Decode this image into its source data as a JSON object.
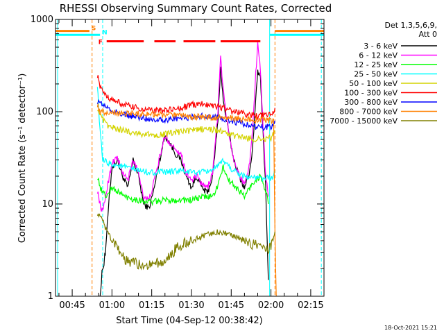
{
  "chart_data": {
    "type": "line",
    "title": "RHESSI Observing Summary Count Rates, Corrected",
    "xlabel": "Start Time (04-Sep-12 00:38:42)",
    "ylabel": "Corrected Count Rate (s⁻¹ detector⁻¹)",
    "yscale": "log",
    "xlim_minutes": [
      38.7,
      140
    ],
    "ylim": [
      1,
      1000
    ],
    "x_ticks": [
      {
        "label": "00:45",
        "minutes": 45
      },
      {
        "label": "01:00",
        "minutes": 60
      },
      {
        "label": "01:15",
        "minutes": 75
      },
      {
        "label": "01:30",
        "minutes": 90
      },
      {
        "label": "01:45",
        "minutes": 105
      },
      {
        "label": "02:00",
        "minutes": 120
      },
      {
        "label": "02:15",
        "minutes": 135
      }
    ],
    "y_ticks": [
      {
        "label": "1",
        "value": 1
      },
      {
        "label": "10",
        "value": 10
      },
      {
        "label": "100",
        "value": 100
      },
      {
        "label": "1000",
        "value": 1000
      }
    ],
    "legend_header": [
      "Det 1,3,5,6,9,",
      "Att 0"
    ],
    "legend_position": "right",
    "grid": false,
    "flag_bars": [
      {
        "label": "S",
        "color": "#ff8000",
        "level": 750,
        "segments": [
          [
            38.7,
            51.5
          ],
          [
            121.5,
            140
          ]
        ]
      },
      {
        "label": "N",
        "color": "#00ffff",
        "level": 680,
        "segments": [
          [
            38.7,
            55.5
          ],
          [
            119.5,
            140
          ]
        ]
      },
      {
        "label": "F",
        "color": "#ff0000",
        "level": 580,
        "segments": [
          [
            58,
            72
          ],
          [
            76,
            84
          ],
          [
            87,
            99
          ],
          [
            101,
            116
          ]
        ]
      }
    ],
    "vertical_markers": [
      {
        "minutes": 39.5,
        "color": "#00ffff",
        "style": "solid"
      },
      {
        "minutes": 52.5,
        "color": "#ff8000",
        "style": "dashed"
      },
      {
        "minutes": 56.5,
        "color": "#00ffff",
        "style": "dashed"
      },
      {
        "minutes": 119.5,
        "color": "#00ffff",
        "style": "solid"
      },
      {
        "minutes": 121.5,
        "color": "#ff8000",
        "style": "dashed"
      },
      {
        "minutes": 139,
        "color": "#00ffff",
        "style": "dashed"
      }
    ],
    "series": [
      {
        "name": "3 - 6 keV",
        "color": "#000000",
        "x": [
          55.5,
          56.5,
          57.5,
          59,
          60,
          62,
          64,
          66,
          68,
          70,
          72,
          74,
          76,
          78,
          80,
          82,
          84,
          86,
          88,
          90,
          92,
          94,
          96,
          98,
          100,
          101,
          102,
          104,
          106,
          108,
          110,
          112,
          113,
          114,
          115,
          116,
          117,
          118,
          119
        ],
        "y": [
          1,
          2,
          3,
          12,
          25,
          30,
          20,
          15,
          30,
          20,
          10,
          9,
          15,
          30,
          55,
          45,
          35,
          30,
          20,
          15,
          20,
          15,
          13,
          20,
          80,
          320,
          130,
          60,
          30,
          20,
          15,
          22,
          40,
          100,
          280,
          230,
          60,
          15,
          1.5
        ]
      },
      {
        "name": "6 - 12 keV",
        "color": "#ff00ff",
        "x": [
          54.5,
          55.5,
          56.5,
          58,
          60,
          62,
          64,
          66,
          68,
          70,
          72,
          74,
          76,
          78,
          80,
          82,
          84,
          86,
          88,
          90,
          92,
          94,
          96,
          98,
          100,
          101,
          102,
          104,
          106,
          108,
          110,
          112,
          113,
          114,
          115,
          116,
          117,
          118,
          119
        ],
        "y": [
          14,
          10,
          8,
          14,
          28,
          32,
          22,
          18,
          30,
          22,
          12,
          11,
          18,
          32,
          55,
          45,
          40,
          35,
          22,
          18,
          20,
          16,
          15,
          22,
          100,
          400,
          170,
          60,
          30,
          20,
          17,
          28,
          60,
          200,
          550,
          300,
          70,
          20,
          12
        ]
      },
      {
        "name": "12 - 25 keV",
        "color": "#00ff00",
        "x": [
          54.5,
          56,
          58,
          60,
          65,
          70,
          75,
          80,
          85,
          90,
          95,
          98,
          100,
          102,
          104,
          106,
          108,
          110,
          112,
          114,
          116,
          118,
          119
        ],
        "y": [
          20,
          14,
          12,
          15,
          12,
          11,
          10.5,
          11,
          11,
          11,
          12,
          12,
          16,
          25,
          18,
          16,
          14,
          12,
          15,
          18,
          20,
          14,
          10
        ]
      },
      {
        "name": "25 - 50 keV",
        "color": "#00ffff",
        "x": [
          54.5,
          55.5,
          56.5,
          58,
          60,
          65,
          70,
          75,
          80,
          85,
          90,
          95,
          98,
          100,
          102,
          105,
          110,
          115,
          120,
          121.5
        ],
        "y": [
          200,
          60,
          30,
          28,
          27,
          25,
          23,
          22,
          22,
          23,
          22,
          22,
          24,
          25,
          30,
          24,
          20,
          19,
          19,
          22
        ]
      },
      {
        "name": "50 - 100 keV",
        "color": "#d4d400",
        "x": [
          54.5,
          56,
          58,
          60,
          65,
          70,
          75,
          80,
          85,
          90,
          95,
          100,
          105,
          110,
          115,
          120,
          121.5
        ],
        "y": [
          110,
          85,
          72,
          67,
          62,
          58,
          56,
          57,
          60,
          63,
          65,
          63,
          56,
          52,
          50,
          52,
          60
        ]
      },
      {
        "name": "100 - 300 keV",
        "color": "#ff0000",
        "x": [
          54.5,
          56,
          58,
          60,
          65,
          70,
          75,
          80,
          85,
          90,
          95,
          100,
          105,
          110,
          115,
          120,
          121.5
        ],
        "y": [
          250,
          170,
          150,
          135,
          118,
          108,
          103,
          103,
          108,
          118,
          122,
          115,
          102,
          95,
          90,
          92,
          110
        ]
      },
      {
        "name": "300 - 800 keV",
        "color": "#0000ff",
        "x": [
          54.5,
          56,
          58,
          60,
          65,
          70,
          75,
          80,
          85,
          90,
          95,
          100,
          105,
          110,
          115,
          120,
          121.5
        ],
        "y": [
          130,
          122,
          112,
          102,
          92,
          87,
          83,
          82,
          84,
          88,
          90,
          86,
          80,
          73,
          68,
          67,
          80
        ]
      },
      {
        "name": "800 - 7000 keV",
        "color": "#ff8000",
        "x": [
          54.5,
          55.5,
          121,
          121.5,
          122
        ],
        "y": [
          120,
          100,
          80,
          5,
          1
        ]
      },
      {
        "name": "7000 - 15000 keV",
        "color": "#808000",
        "x": [
          54.5,
          56,
          58,
          60,
          63,
          65,
          70,
          75,
          80,
          83,
          85,
          88,
          90,
          95,
          100,
          105,
          110,
          115,
          120,
          121.5
        ],
        "y": [
          8,
          7,
          5,
          4,
          3,
          2.5,
          2.2,
          2.2,
          2.4,
          3,
          3.5,
          3.8,
          4,
          4.5,
          5,
          4.5,
          4,
          3.5,
          3.3,
          5
        ]
      }
    ]
  },
  "footer": {
    "timestamp": "18-Oct-2021 15:21"
  }
}
